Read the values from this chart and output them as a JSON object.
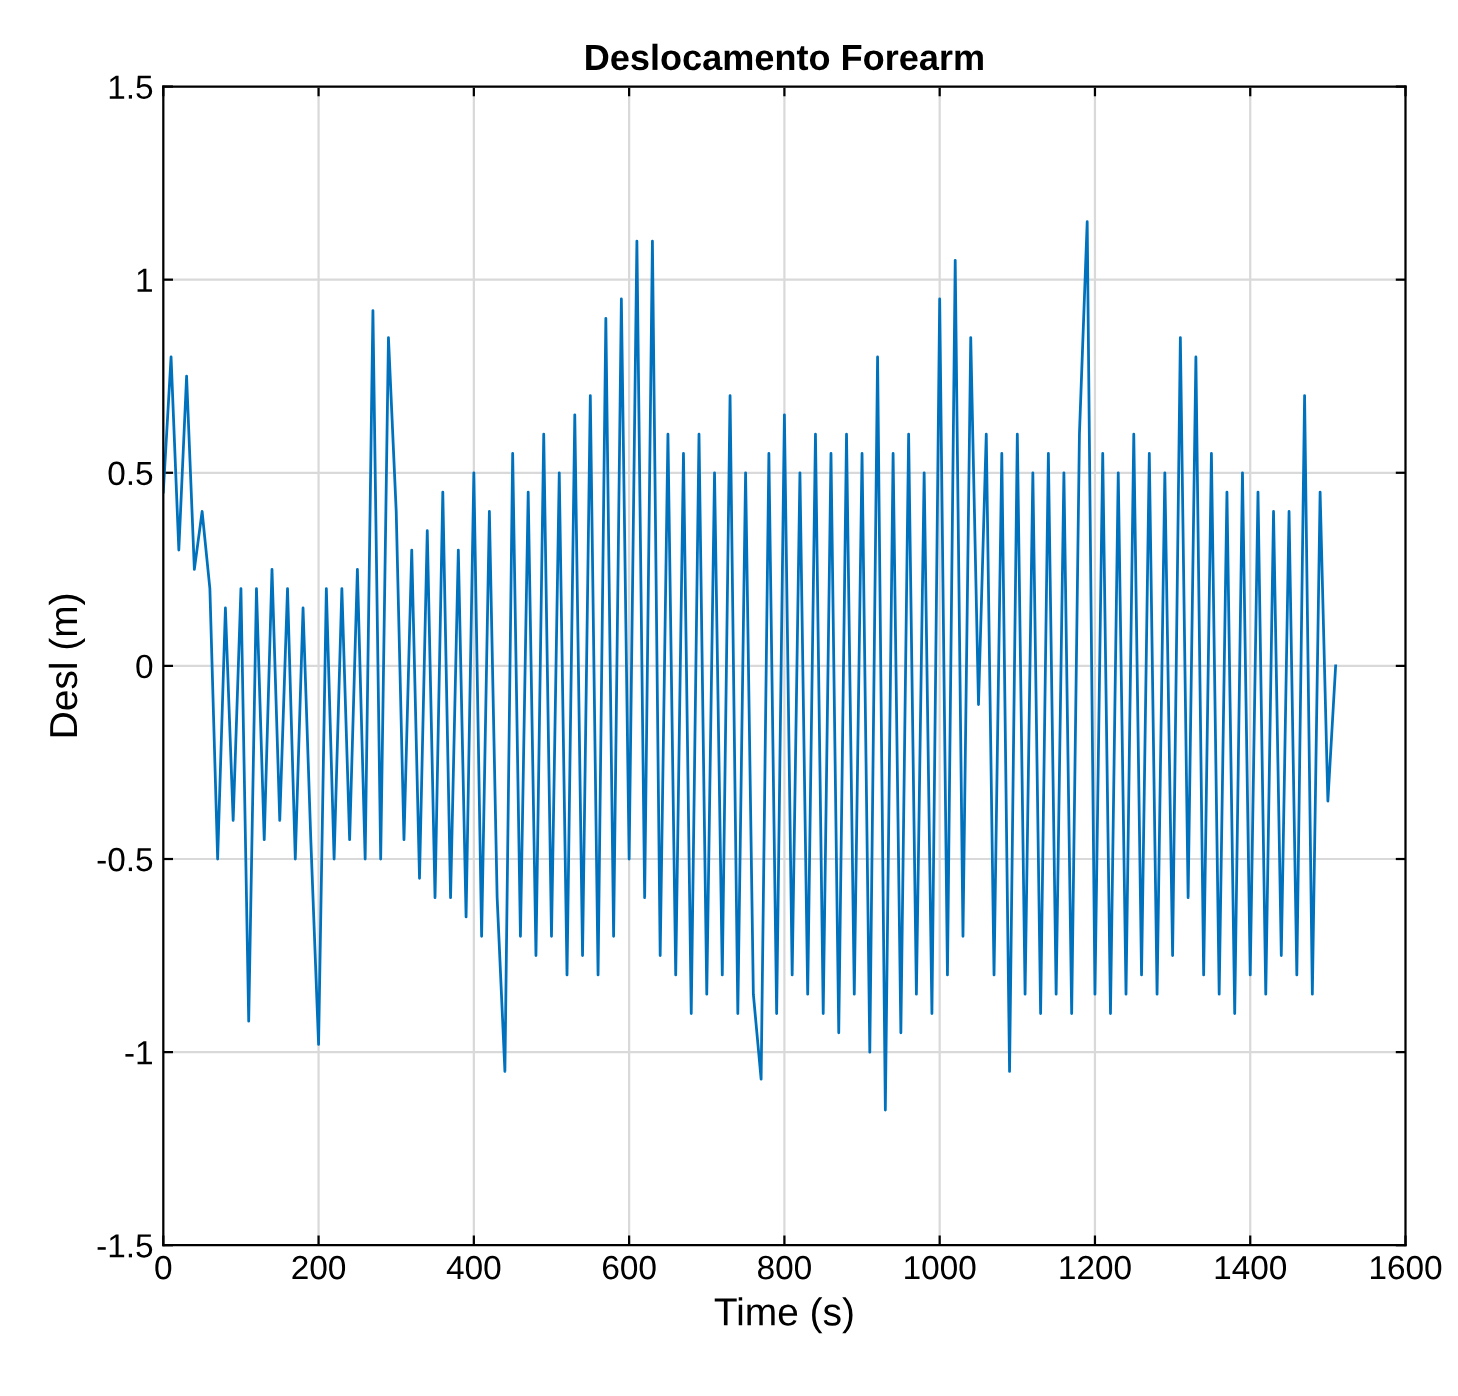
{
  "chart_data": {
    "type": "line",
    "title": "Deslocamento Forearm",
    "xlabel": "Time (s)",
    "ylabel": "Desl (m)",
    "xlim": [
      0,
      1600
    ],
    "xticks": [
      0,
      200,
      400,
      600,
      800,
      1000,
      1200,
      1400,
      1600
    ],
    "ylim": [
      -1.5,
      1.5
    ],
    "yticks": [
      -1.5,
      -1,
      -0.5,
      0,
      0.5,
      1,
      1.5
    ],
    "grid": true,
    "x": [
      0,
      10,
      20,
      30,
      40,
      50,
      60,
      70,
      80,
      90,
      100,
      110,
      120,
      130,
      140,
      150,
      160,
      170,
      180,
      190,
      200,
      210,
      220,
      230,
      240,
      250,
      260,
      270,
      280,
      290,
      300,
      310,
      320,
      330,
      340,
      350,
      360,
      370,
      380,
      390,
      400,
      410,
      420,
      430,
      440,
      450,
      460,
      470,
      480,
      490,
      500,
      510,
      520,
      530,
      540,
      550,
      560,
      570,
      580,
      590,
      600,
      610,
      620,
      630,
      640,
      650,
      660,
      670,
      680,
      690,
      700,
      710,
      720,
      730,
      740,
      750,
      760,
      770,
      780,
      790,
      800,
      810,
      820,
      830,
      840,
      850,
      860,
      870,
      880,
      890,
      900,
      910,
      920,
      930,
      940,
      950,
      960,
      970,
      980,
      990,
      1000,
      1010,
      1020,
      1030,
      1040,
      1050,
      1060,
      1070,
      1080,
      1090,
      1100,
      1110,
      1120,
      1130,
      1140,
      1150,
      1160,
      1170,
      1180,
      1190,
      1200,
      1210,
      1220,
      1230,
      1240,
      1250,
      1260,
      1270,
      1280,
      1290,
      1300,
      1310,
      1320,
      1330,
      1340,
      1350,
      1360,
      1370,
      1380,
      1390,
      1400,
      1410,
      1420,
      1430,
      1440,
      1450,
      1460,
      1470,
      1480,
      1490,
      1500,
      1510
    ],
    "series": [
      {
        "color": "#0072bd",
        "values": [
          0.45,
          0.8,
          0.3,
          0.75,
          0.25,
          0.4,
          0.2,
          -0.5,
          0.15,
          -0.4,
          0.2,
          -0.92,
          0.2,
          -0.45,
          0.25,
          -0.4,
          0.2,
          -0.5,
          0.15,
          -0.45,
          -0.98,
          0.2,
          -0.5,
          0.2,
          -0.45,
          0.25,
          -0.5,
          0.92,
          -0.5,
          0.85,
          0.4,
          -0.45,
          0.3,
          -0.55,
          0.35,
          -0.6,
          0.45,
          -0.6,
          0.3,
          -0.65,
          0.5,
          -0.7,
          0.4,
          -0.6,
          -1.05,
          0.55,
          -0.7,
          0.45,
          -0.75,
          0.6,
          -0.7,
          0.5,
          -0.8,
          0.65,
          -0.75,
          0.7,
          -0.8,
          0.9,
          -0.7,
          0.95,
          -0.5,
          1.1,
          -0.6,
          1.1,
          -0.75,
          0.6,
          -0.8,
          0.55,
          -0.9,
          0.6,
          -0.85,
          0.5,
          -0.8,
          0.7,
          -0.9,
          0.5,
          -0.85,
          -1.07,
          0.55,
          -0.9,
          0.65,
          -0.8,
          0.5,
          -0.85,
          0.6,
          -0.9,
          0.55,
          -0.95,
          0.6,
          -0.85,
          0.55,
          -1.0,
          0.8,
          -1.15,
          0.55,
          -0.95,
          0.6,
          -0.85,
          0.5,
          -0.9,
          0.95,
          -0.8,
          1.05,
          -0.7,
          0.85,
          -0.1,
          0.6,
          -0.8,
          0.55,
          -1.05,
          0.6,
          -0.85,
          0.5,
          -0.9,
          0.55,
          -0.85,
          0.5,
          -0.9,
          0.6,
          1.15,
          -0.85,
          0.55,
          -0.9,
          0.5,
          -0.85,
          0.6,
          -0.8,
          0.55,
          -0.85,
          0.5,
          -0.75,
          0.85,
          -0.6,
          0.8,
          -0.8,
          0.55,
          -0.85,
          0.45,
          -0.9,
          0.5,
          -0.8,
          0.45,
          -0.85,
          0.4,
          -0.75,
          0.4,
          -0.8,
          0.7,
          -0.85,
          0.45,
          -0.35,
          0.0
        ]
      }
    ]
  }
}
